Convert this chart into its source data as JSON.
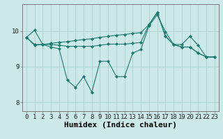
{
  "bg_color": "#cce8e8",
  "line_color": "#1a7a6e",
  "grid_color": "#aacfcf",
  "xlabel": "Humidex (Indice chaleur)",
  "xlabel_fontsize": 8,
  "tick_fontsize": 6.5,
  "ylim": [
    7.75,
    10.75
  ],
  "xlim": [
    -0.5,
    23.5
  ],
  "yticks": [
    8,
    9,
    10
  ],
  "xticks": [
    0,
    1,
    2,
    3,
    4,
    5,
    6,
    7,
    8,
    9,
    10,
    11,
    12,
    13,
    14,
    15,
    16,
    17,
    18,
    19,
    20,
    21,
    22,
    23
  ],
  "line1": [
    9.82,
    10.02,
    9.62,
    9.55,
    9.5,
    8.62,
    8.42,
    8.72,
    8.28,
    9.15,
    9.15,
    8.72,
    8.72,
    9.38,
    9.48,
    10.15,
    10.45,
    9.98,
    9.62,
    9.62,
    9.85,
    9.6,
    9.27,
    9.27
  ],
  "line2": [
    9.82,
    9.62,
    9.62,
    9.62,
    9.6,
    9.57,
    9.57,
    9.57,
    9.57,
    9.6,
    9.63,
    9.63,
    9.63,
    9.65,
    9.68,
    10.18,
    10.52,
    9.85,
    9.62,
    9.55,
    9.55,
    9.38,
    9.27,
    9.27
  ],
  "line3": [
    9.82,
    9.6,
    9.62,
    9.65,
    9.68,
    9.7,
    9.73,
    9.76,
    9.78,
    9.82,
    9.85,
    9.88,
    9.9,
    9.93,
    9.95,
    10.18,
    10.52,
    9.85,
    9.62,
    9.55,
    9.55,
    9.38,
    9.27,
    9.27
  ]
}
